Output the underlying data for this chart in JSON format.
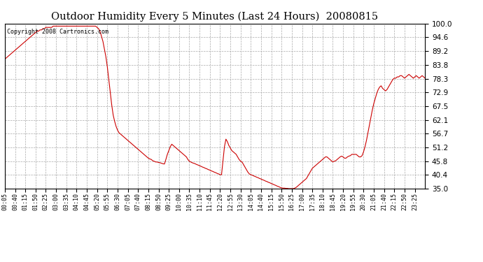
{
  "title": "Outdoor Humidity Every 5 Minutes (Last 24 Hours)  20080815",
  "copyright_text": "Copyright 2008 Cartronics.com",
  "line_color": "#cc0000",
  "background_color": "#ffffff",
  "grid_color": "#aaaaaa",
  "yticks": [
    35.0,
    40.4,
    45.8,
    51.2,
    56.7,
    62.1,
    67.5,
    72.9,
    78.3,
    83.8,
    89.2,
    94.6,
    100.0
  ],
  "ylim": [
    35.0,
    100.0
  ],
  "humidity_data": [
    86.0,
    86.5,
    87.0,
    87.5,
    88.0,
    88.5,
    89.0,
    89.5,
    90.0,
    90.5,
    91.0,
    91.5,
    92.0,
    92.5,
    93.0,
    93.5,
    94.0,
    94.5,
    95.0,
    95.5,
    96.0,
    96.5,
    97.0,
    97.0,
    97.5,
    97.5,
    98.0,
    98.0,
    98.5,
    98.5,
    98.5,
    98.5,
    98.5,
    99.0,
    99.0,
    99.0,
    99.0,
    99.0,
    99.0,
    99.0,
    99.0,
    99.0,
    99.0,
    99.0,
    99.0,
    99.0,
    99.0,
    99.0,
    99.0,
    99.0,
    99.0,
    99.0,
    99.0,
    99.0,
    99.0,
    99.0,
    99.0,
    99.0,
    99.0,
    99.0,
    99.0,
    99.0,
    99.0,
    98.5,
    98.0,
    97.0,
    95.0,
    93.0,
    90.0,
    87.0,
    83.0,
    78.0,
    73.0,
    68.0,
    64.0,
    61.5,
    59.5,
    58.0,
    57.0,
    56.5,
    56.0,
    55.5,
    55.0,
    54.5,
    54.0,
    53.5,
    53.0,
    52.5,
    52.0,
    51.5,
    51.0,
    50.5,
    50.0,
    49.5,
    49.0,
    48.5,
    48.0,
    47.5,
    47.0,
    46.7,
    46.5,
    46.0,
    45.8,
    45.5,
    45.5,
    45.3,
    45.2,
    45.0,
    44.8,
    44.7,
    46.5,
    48.5,
    50.0,
    51.5,
    52.5,
    52.0,
    51.5,
    51.0,
    50.5,
    50.0,
    49.5,
    49.0,
    48.5,
    48.0,
    47.5,
    46.5,
    45.8,
    45.5,
    45.2,
    45.0,
    44.8,
    44.5,
    44.3,
    44.0,
    43.8,
    43.5,
    43.3,
    43.0,
    42.8,
    42.5,
    42.3,
    42.0,
    41.8,
    41.5,
    41.3,
    41.0,
    40.8,
    40.5,
    40.5,
    46.0,
    51.5,
    54.5,
    53.5,
    52.0,
    51.0,
    50.0,
    49.5,
    49.0,
    48.5,
    47.5,
    46.5,
    45.8,
    45.5,
    44.5,
    43.5,
    42.5,
    41.5,
    40.8,
    40.5,
    40.3,
    40.0,
    39.8,
    39.5,
    39.3,
    39.0,
    38.8,
    38.5,
    38.3,
    38.0,
    37.8,
    37.5,
    37.3,
    37.0,
    36.8,
    36.5,
    36.3,
    36.0,
    35.8,
    35.5,
    35.3,
    35.2,
    35.2,
    35.1,
    35.1,
    35.0,
    35.0,
    35.0,
    35.0,
    35.2,
    35.5,
    36.0,
    36.5,
    37.0,
    37.5,
    38.0,
    38.5,
    39.0,
    40.0,
    41.0,
    42.0,
    43.0,
    43.5,
    44.0,
    44.5,
    45.0,
    45.5,
    46.0,
    46.5,
    47.0,
    47.5,
    47.5,
    47.0,
    46.5,
    46.0,
    45.5,
    45.8,
    46.0,
    46.5,
    47.0,
    47.5,
    47.8,
    47.5,
    47.0,
    47.0,
    47.5,
    47.8,
    48.0,
    48.5,
    48.5,
    48.5,
    48.5,
    48.0,
    47.5,
    47.5,
    48.0,
    49.5,
    51.5,
    54.0,
    57.0,
    60.0,
    63.0,
    66.0,
    68.5,
    70.5,
    72.5,
    74.0,
    75.0,
    75.5,
    74.5,
    74.0,
    73.5,
    74.0,
    75.0,
    76.0,
    77.0,
    78.0,
    78.5,
    78.5,
    79.0,
    79.0,
    79.5,
    79.5,
    79.0,
    78.5,
    79.0,
    79.5,
    80.0,
    79.5,
    79.0,
    78.5,
    79.0,
    79.5,
    79.0,
    78.5,
    79.0,
    79.5,
    79.0,
    78.5
  ],
  "xtick_labels": [
    "00:05",
    "00:40",
    "01:15",
    "01:50",
    "02:25",
    "03:00",
    "03:35",
    "04:10",
    "04:45",
    "05:20",
    "05:55",
    "06:30",
    "07:05",
    "07:40",
    "08:15",
    "08:50",
    "09:25",
    "10:00",
    "10:35",
    "11:10",
    "11:45",
    "12:20",
    "12:55",
    "13:30",
    "14:05",
    "14:40",
    "15:15",
    "15:50",
    "16:25",
    "17:00",
    "17:35",
    "18:10",
    "18:45",
    "19:20",
    "19:55",
    "20:30",
    "21:05",
    "21:40",
    "22:15",
    "22:50",
    "23:25"
  ]
}
